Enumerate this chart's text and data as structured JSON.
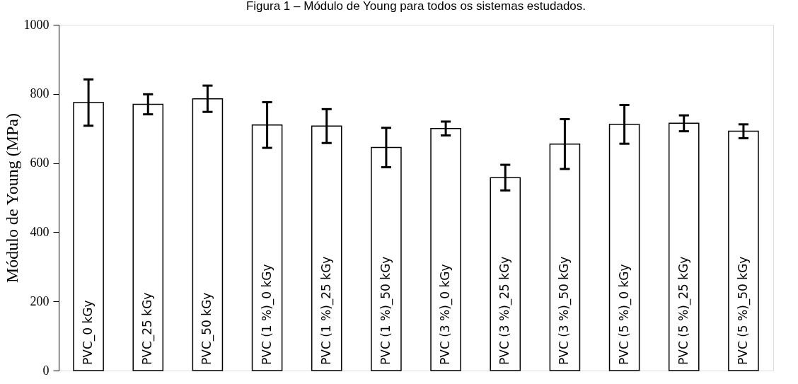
{
  "chart_data": {
    "type": "bar",
    "title": "Figura 1 – Módulo de Young para todos os sistemas estudados.",
    "ylabel": "Módulo de Young (MPa)",
    "categories": [
      "PVC_0 kGy",
      "PVC_25 kGy",
      "PVC_50 kGy",
      "PVC (1 %)_0 kGy",
      "PVC (1 %)_25 kGy",
      "PVC (1 %)_50 kGy",
      "PVC (3 %)_0 kGy",
      "PVC (3 %)_25 kGy",
      "PVC (3 %)_50 kGy",
      "PVC (5 %)_0 kGy",
      "PVC (5 %)_25 kGy",
      "PVC (5 %)_50 kGy"
    ],
    "values": [
      775,
      770,
      786,
      710,
      707,
      645,
      700,
      558,
      655,
      712,
      715,
      692
    ],
    "errors": [
      67,
      29,
      38,
      66,
      49,
      57,
      20,
      37,
      72,
      56,
      23,
      20
    ],
    "color": "#ffffff",
    "ylim": [
      0,
      1000
    ],
    "yticks": [
      0,
      200,
      400,
      600,
      800,
      1000
    ],
    "grid": false
  }
}
